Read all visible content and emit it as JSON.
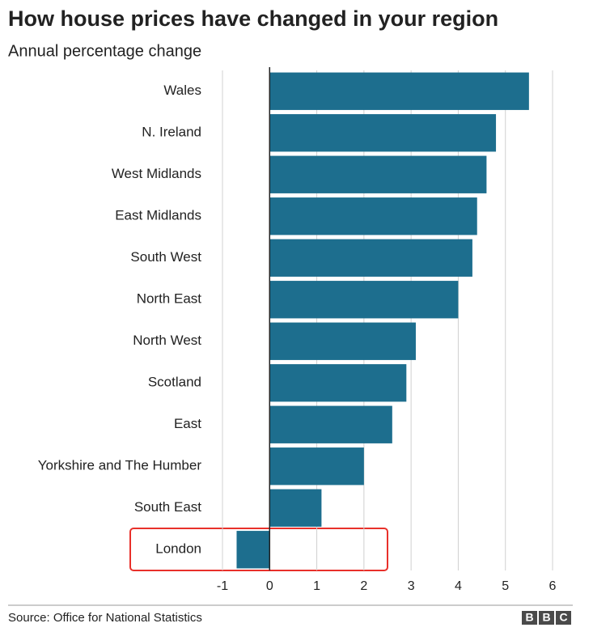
{
  "chart_data": {
    "type": "hbar",
    "title": "How house prices have changed in your region",
    "subtitle": "Annual percentage change",
    "categories": [
      "Wales",
      "N. Ireland",
      "West Midlands",
      "East Midlands",
      "South West",
      "North East",
      "North West",
      "Scotland",
      "East",
      "Yorkshire and The Humber",
      "South East",
      "London"
    ],
    "values": [
      5.5,
      4.8,
      4.6,
      4.4,
      4.3,
      4.0,
      3.1,
      2.9,
      2.6,
      2.0,
      1.1,
      -0.7
    ],
    "color": "#1d6e8e",
    "xlim": [
      -1,
      6
    ],
    "xticks": [
      -1,
      0,
      1,
      2,
      3,
      4,
      5,
      6
    ],
    "grid": true,
    "source": "Source: Office for National Statistics",
    "logo": [
      "B",
      "B",
      "C"
    ]
  }
}
